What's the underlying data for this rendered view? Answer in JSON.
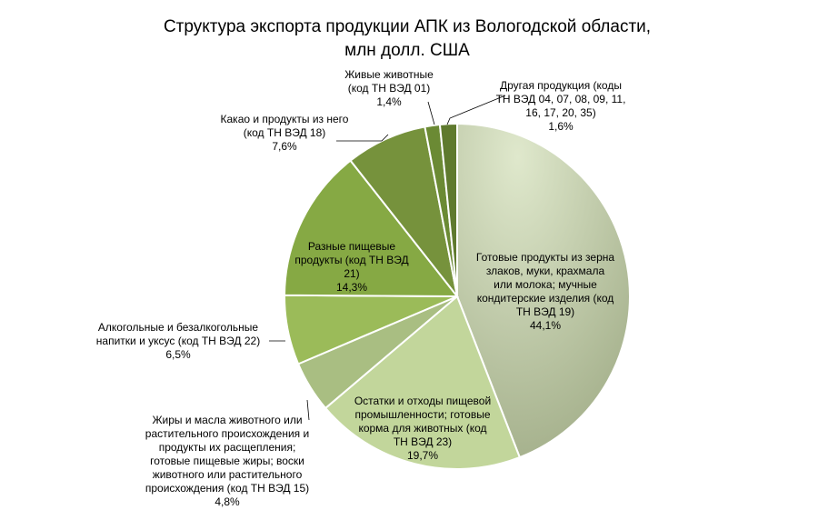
{
  "chart_data": {
    "type": "pie",
    "title": "Структура экспорта продукции  АПК из Вологодской области, млн  долл. США",
    "title_lines": [
      "Структура экспорта продукции  АПК из Вологодской области,",
      "млн  долл. США"
    ],
    "unit": "%",
    "slices": [
      {
        "label": "Готовые продукты из зерна злаков, муки, крахмала или молока; мучные кондитерские изделия (код ТН ВЭД 19)",
        "label_lines": [
          "Готовые  продукты  из зерна",
          "злаков, муки, крахмала",
          "или молока; мучные",
          "кондитерские  изделия (код",
          "ТН  ВЭД 19)"
        ],
        "value": 44.1,
        "value_text": "44,1%",
        "color": "#adb896"
      },
      {
        "label": "Остатки и отходы пищевой промышленности; готовые корма для животных (код ТН ВЭД 23)",
        "label_lines": [
          "Остатки  и отходы пищевой",
          "промышленности;  готовые",
          "корма для животных  (код",
          "ТН  ВЭД 23)"
        ],
        "value": 19.7,
        "value_text": "19,7%",
        "color": "#c2d69b"
      },
      {
        "label": "Жиры и масла животного или растительного происхождения и продукты их расщепления; готовые пищевые жиры; воски животного или растительного происхождения (код ТН ВЭД 15)",
        "label_lines": [
          "Жиры  и масла животного  или",
          "растительного  происхождения  и",
          "продукты  их расщепления;",
          "готовые  пищевые жиры; воски",
          "животного  или  растительного",
          "происхождения  (код ТН  ВЭД 15)"
        ],
        "value": 4.8,
        "value_text": "4,8%",
        "color": "#a9be82"
      },
      {
        "label": "Алкогольные и безалкогольные напитки и уксус (код ТН ВЭД 22)",
        "label_lines": [
          "Алкогольные  и  безалкогольные",
          "напитки  и уксус (код ТН  ВЭД 22)"
        ],
        "value": 6.5,
        "value_text": "6,5%",
        "color": "#9bbb59"
      },
      {
        "label": "Разные пищевые продукты (код ТН ВЭД 21)",
        "label_lines": [
          "Разные  пищевые",
          "продукты  (код ТН  ВЭД",
          "21)"
        ],
        "value": 14.3,
        "value_text": "14,3%",
        "color": "#86a944"
      },
      {
        "label": "Какао и продукты из него (код ТН ВЭД 18)",
        "label_lines": [
          "Какао и продукты  из него",
          "(код  ТН  ВЭД 18)"
        ],
        "value": 7.6,
        "value_text": "7,6%",
        "color": "#76923c"
      },
      {
        "label": "Живые животные (код ТН ВЭД 01)",
        "label_lines": [
          "Живые  животные",
          "(код  ТН  ВЭД 01)"
        ],
        "value": 1.4,
        "value_text": "1,4%",
        "color": "#6b8a34"
      },
      {
        "label": "Другая продукция (коды ТН ВЭД 04, 07, 08, 09, 11, 16, 17, 20, 35)",
        "label_lines": [
          "Другая продукция  (коды",
          "ТН  ВЭД  04,  07,  08,  09,  11,",
          "16,  17,  20,  35)"
        ],
        "value": 1.6,
        "value_text": "1,6%",
        "color": "#5f7a2e"
      }
    ],
    "legend": "none"
  }
}
